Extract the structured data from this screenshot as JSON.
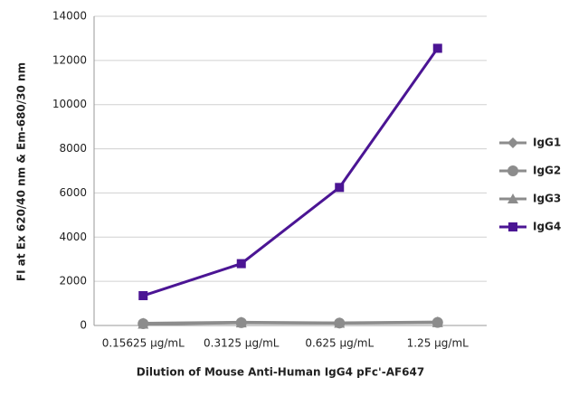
{
  "chart_data": {
    "type": "line",
    "x_label": "Dilution of Mouse Anti-Human IgG4 pFc'-AF647",
    "y_label": "FI at Ex 620/40 nm & Em-680/30 nm",
    "categories": [
      "0.15625 µg/mL",
      "0.3125 µg/mL",
      "0.625 µg/mL",
      "1.25 µg/mL"
    ],
    "series": [
      {
        "name": "IgG1",
        "color": "#8c8c8c",
        "marker": "diamond",
        "values": [
          100,
          150,
          120,
          160
        ]
      },
      {
        "name": "IgG2",
        "color": "#8c8c8c",
        "marker": "circle",
        "values": [
          80,
          130,
          110,
          140
        ]
      },
      {
        "name": "IgG3",
        "color": "#8c8c8c",
        "marker": "triangle",
        "values": [
          60,
          120,
          100,
          130
        ]
      },
      {
        "name": "IgG4",
        "color": "#4b1594",
        "marker": "square",
        "values": [
          1350,
          2800,
          6250,
          12550
        ]
      }
    ],
    "ylim": [
      0,
      14000
    ],
    "yticks": [
      0,
      2000,
      4000,
      6000,
      8000,
      10000,
      12000,
      14000
    ],
    "grid": true,
    "legend": "right"
  }
}
